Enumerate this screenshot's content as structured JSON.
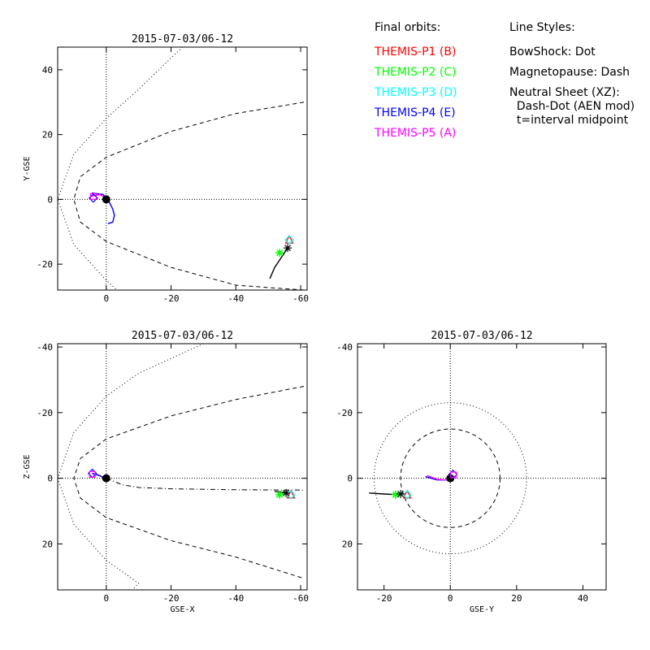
{
  "header": {
    "final_orbits_title": "Final orbits:",
    "line_styles_title": "Line Styles:"
  },
  "legend": {
    "spacecraft": [
      {
        "label": "THEMIS-P1 (B)",
        "color": "#ff0000",
        "symbol": "triangle"
      },
      {
        "label": "THEMIS-P2 (C)",
        "color": "#00ff00",
        "symbol": "asterisk"
      },
      {
        "label": "THEMIS-P3 (D)",
        "color": "#00ffff",
        "symbol": "diamond"
      },
      {
        "label": "THEMIS-P4 (E)",
        "color": "#0000ff",
        "symbol": "diamond"
      },
      {
        "label": "THEMIS-P5 (A)",
        "color": "#ff00ff",
        "symbol": "square"
      }
    ],
    "line_styles": [
      "BowShock: Dot",
      "Magnetopause: Dash",
      "Neutral Sheet (XZ):",
      "  Dash-Dot (AEN mod)",
      "  t=interval midpoint"
    ]
  },
  "chart_data": [
    {
      "type": "line",
      "title": "2015-07-03/06-12",
      "xlabel": "",
      "ylabel": "Y-GSE",
      "xlim": [
        15,
        -62
      ],
      "ylim": [
        47,
        -28
      ],
      "xticks": [
        0,
        -20,
        -40,
        -60
      ],
      "xtick_labels": [
        "0",
        "-20",
        "-40",
        "-60"
      ],
      "yticks": [
        -20,
        0,
        20,
        40
      ],
      "ytick_labels": [
        "-20",
        "0",
        "20",
        "40"
      ],
      "series": [
        {
          "kind": "bowshock",
          "style": "dot",
          "x": [
            -23.5,
            -10,
            0,
            10,
            15,
            10,
            0,
            -10,
            -25
          ],
          "y": [
            47,
            34,
            25,
            14,
            0,
            -14,
            -25,
            -34,
            -28
          ]
        },
        {
          "kind": "magnetopause",
          "style": "dash",
          "x": [
            -61,
            -40,
            -20,
            0,
            8,
            10,
            8,
            0,
            -20,
            -40,
            -61
          ],
          "y": [
            30,
            26.5,
            21,
            13,
            7,
            0,
            -7,
            -13,
            -21,
            -26.5,
            -28
          ]
        },
        {
          "kind": "orbit",
          "color": "#000000",
          "x": [
            -50.5,
            -52,
            -54,
            -56
          ],
          "y": [
            -24.5,
            -21,
            -18,
            -15
          ]
        },
        {
          "kind": "orbit",
          "color": "#0000ff",
          "x": [
            4.5,
            1,
            0,
            -1,
            -2,
            -2.5,
            -2,
            -0.5
          ],
          "y": [
            2,
            1.5,
            0.5,
            -1,
            -3,
            -5,
            -7,
            -7.5
          ]
        },
        {
          "kind": "orbit",
          "color": "#ff00ff",
          "x": [
            4.5,
            2,
            0.2
          ],
          "y": [
            1,
            1.5,
            0.5
          ]
        }
      ],
      "markers": [
        {
          "label": "THEMIS-P1 (B)",
          "x": -56.5,
          "y": -12.5
        },
        {
          "label": "THEMIS-P2 (C)",
          "x": -53.5,
          "y": -16.5
        },
        {
          "label": "THEMIS-P3 (D)",
          "x": -56.5,
          "y": -12.5
        },
        {
          "label": "THEMIS-P4 (E)",
          "x": 4,
          "y": 0.4
        },
        {
          "label": "THEMIS-P5 (A)",
          "x": 4,
          "y": 0.9
        },
        {
          "label": "t=interval midpoint",
          "x": -56,
          "y": -15
        }
      ],
      "grid": false
    },
    {
      "type": "line",
      "title": "2015-07-03/06-12",
      "xlabel": "GSE-X",
      "ylabel": "Z-GSE",
      "xlim": [
        15,
        -62
      ],
      "ylim": [
        -41,
        34
      ],
      "xticks": [
        0,
        -20,
        -40,
        -60
      ],
      "xtick_labels": [
        "0",
        "-20",
        "-40",
        "-60"
      ],
      "yticks": [
        -40,
        -20,
        0,
        20
      ],
      "ytick_labels": [
        "-40",
        "-20",
        "0",
        "20"
      ],
      "series": [
        {
          "kind": "bowshock",
          "style": "dot",
          "x": [
            -30,
            -10,
            0,
            10,
            15,
            10,
            0,
            -10,
            -8
          ],
          "y": [
            -41,
            -32,
            -25,
            -14,
            0,
            14,
            25,
            32,
            34
          ]
        },
        {
          "kind": "magnetopause",
          "style": "dash",
          "x": [
            -61,
            -40,
            -20,
            0,
            8,
            10,
            8,
            0,
            -20,
            -40,
            -61
          ],
          "y": [
            -28,
            -24,
            -19,
            -12,
            -6,
            0,
            6,
            12,
            19,
            24,
            30.5
          ]
        },
        {
          "kind": "neutral_sheet",
          "style": "dash-dot",
          "x": [
            0,
            -5,
            -10,
            -20,
            -40,
            -61
          ],
          "y": [
            0,
            2,
            2.8,
            3.2,
            3.5,
            3.6
          ]
        },
        {
          "kind": "orbit",
          "color": "#000000",
          "x": [
            -52,
            -54,
            -56
          ],
          "y": [
            4,
            4.2,
            4.5
          ]
        },
        {
          "kind": "orbit",
          "color": "#ff00ff",
          "x": [
            4.5,
            2,
            0.5
          ],
          "y": [
            -1.5,
            -0.8,
            0
          ]
        },
        {
          "kind": "orbit",
          "color": "#0000ff",
          "x": [
            4.3,
            2,
            0.5
          ],
          "y": [
            -1.5,
            -0.8,
            0
          ]
        }
      ],
      "markers": [
        {
          "label": "THEMIS-P1 (B)",
          "x": -57,
          "y": 5
        },
        {
          "label": "THEMIS-P2 (C)",
          "x": -53.5,
          "y": 5
        },
        {
          "label": "THEMIS-P3 (D)",
          "x": -57,
          "y": 5
        },
        {
          "label": "THEMIS-P4 (E)",
          "x": 4.3,
          "y": -1.5
        },
        {
          "label": "THEMIS-P5 (A)",
          "x": 4.3,
          "y": -1.2
        },
        {
          "label": "t=interval midpoint",
          "x": -55.5,
          "y": 4.5
        }
      ],
      "grid": false
    },
    {
      "type": "line",
      "title": "2015-07-03/06-12",
      "xlabel": "GSE-Y",
      "ylabel": "",
      "xlim": [
        -28,
        47
      ],
      "ylim": [
        -41,
        34
      ],
      "xticks": [
        -20,
        0,
        20,
        40
      ],
      "xtick_labels": [
        "-20",
        "0",
        "20",
        "40"
      ],
      "yticks": [
        -40,
        -20,
        0,
        20
      ],
      "ytick_labels": [
        "-40",
        "-20",
        "0",
        "20"
      ],
      "series": [
        {
          "kind": "bowshock_cross_section",
          "style": "dot",
          "radius": 23
        },
        {
          "kind": "magnetopause_cross_section",
          "style": "dash",
          "radius": 15
        },
        {
          "kind": "orbit",
          "color": "#000000",
          "x": [
            -24.5,
            -20,
            -16
          ],
          "y": [
            4.5,
            4.8,
            5
          ]
        },
        {
          "kind": "orbit",
          "color": "#0000ff",
          "x": [
            -7.5,
            -4,
            -1,
            0.5
          ],
          "y": [
            -0.5,
            0.5,
            0.5,
            0
          ]
        },
        {
          "kind": "orbit",
          "color": "#ff00ff",
          "x": [
            -7,
            -4,
            -1.5,
            0.5
          ],
          "y": [
            -0.8,
            0.3,
            0.5,
            0
          ]
        }
      ],
      "markers": [
        {
          "label": "THEMIS-P1 (B)",
          "x": -13,
          "y": 5
        },
        {
          "label": "THEMIS-P2 (C)",
          "x": -16.5,
          "y": 5
        },
        {
          "label": "THEMIS-P3 (D)",
          "x": -13,
          "y": 5
        },
        {
          "label": "THEMIS-P4 (E)",
          "x": 0.8,
          "y": -1.2
        },
        {
          "label": "THEMIS-P5 (A)",
          "x": 1,
          "y": -1
        },
        {
          "label": "t=interval midpoint",
          "x": -15,
          "y": 4.8
        }
      ],
      "grid": false
    }
  ]
}
